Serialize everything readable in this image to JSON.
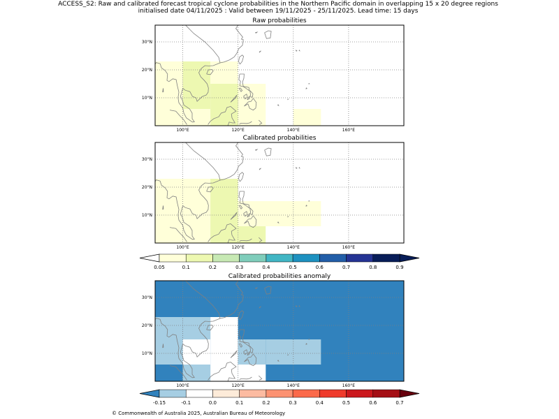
{
  "title": {
    "line1": "ACCESS_S2: Raw and calibrated forecast tropical cyclone probabilities in the Northern Pacific domain in overlapping 15 x 20 degree regions",
    "line2": "initialised date 04/11/2025 :  Valid between 19/11/2025 - 25/11/2025. Lead time: 15 days"
  },
  "footer": "© Commonwealth of Australia 2025, Australian Bureau of Meteorology",
  "colors": {
    "coast": "#808080",
    "grid": "#808080",
    "prob_bins": [
      "#ffffd9",
      "#edf8b1",
      "#c7e9b4",
      "#7fcdbb",
      "#41b6c4",
      "#1d91c0",
      "#225ea8",
      "#253494",
      "#081d58"
    ],
    "prob_under": "#ffffff",
    "prob_over": "#081d58",
    "anom_bins": [
      "#a6cee3",
      "#ffffff",
      "#fdebd9",
      "#fcbba1",
      "#fc9272",
      "#fb6a4a",
      "#ef3b2c",
      "#cb181d",
      "#a50f15"
    ],
    "anom_under": "#3182bd",
    "anom_over": "#67000d"
  },
  "chart_data": [
    {
      "type": "heatmap",
      "title": "Raw probabilities",
      "xlim": [
        90,
        180
      ],
      "ylim": [
        0,
        36
      ],
      "xticks": [
        100,
        120,
        140,
        160
      ],
      "xtick_labels": [
        "100°E",
        "120°E",
        "140°E",
        "160°E"
      ],
      "yticks": [
        10,
        20,
        30
      ],
      "ytick_labels": [
        "10°N",
        "20°N",
        "30°N"
      ],
      "cells": [
        {
          "lon": [
            90,
            100
          ],
          "lat": [
            0,
            23
          ],
          "value": 0.07
        },
        {
          "lon": [
            100,
            110
          ],
          "lat": [
            0,
            6
          ],
          "value": 0.07
        },
        {
          "lon": [
            100,
            110
          ],
          "lat": [
            6,
            23
          ],
          "value": 0.12
        },
        {
          "lon": [
            110,
            120
          ],
          "lat": [
            0,
            15
          ],
          "value": 0.12
        },
        {
          "lon": [
            110,
            120
          ],
          "lat": [
            15,
            23
          ],
          "value": 0.07
        },
        {
          "lon": [
            120,
            130
          ],
          "lat": [
            0,
            15
          ],
          "value": 0.07
        },
        {
          "lon": [
            140,
            150
          ],
          "lat": [
            0,
            6
          ],
          "value": 0.07
        }
      ]
    },
    {
      "type": "heatmap",
      "title": "Calibrated probabilities",
      "xlim": [
        90,
        180
      ],
      "ylim": [
        0,
        36
      ],
      "xticks": [
        100,
        120,
        140,
        160
      ],
      "xtick_labels": [
        "100°E",
        "120°E",
        "140°E",
        "160°E"
      ],
      "yticks": [
        10,
        20,
        30
      ],
      "ytick_labels": [
        "10°N",
        "20°N",
        "30°N"
      ],
      "cells": [
        {
          "lon": [
            90,
            100
          ],
          "lat": [
            0,
            23
          ],
          "value": 0.07
        },
        {
          "lon": [
            100,
            110
          ],
          "lat": [
            0,
            23
          ],
          "value": 0.07
        },
        {
          "lon": [
            110,
            120
          ],
          "lat": [
            0,
            23
          ],
          "value": 0.12
        },
        {
          "lon": [
            120,
            130
          ],
          "lat": [
            0,
            6
          ],
          "value": 0.12
        },
        {
          "lon": [
            120,
            150
          ],
          "lat": [
            6,
            15
          ],
          "value": 0.07
        }
      ]
    },
    {
      "type": "colorbar",
      "name": "probability",
      "boundaries": [
        0.05,
        0.1,
        0.2,
        0.3,
        0.4,
        0.5,
        0.6,
        0.7,
        0.8,
        0.9
      ],
      "labels": [
        "0.05",
        "0.1",
        "0.2",
        "0.3",
        "0.4",
        "0.5",
        "0.6",
        "0.7",
        "0.8",
        "0.9"
      ],
      "extend": "both"
    },
    {
      "type": "heatmap",
      "title": "Calibrated probabilities anomaly",
      "xlim": [
        90,
        180
      ],
      "ylim": [
        0,
        36
      ],
      "xticks": [
        100,
        120,
        140,
        160
      ],
      "xtick_labels": [
        "100°E",
        "120°E",
        "140°E",
        "160°E"
      ],
      "yticks": [
        10,
        20,
        30
      ],
      "ytick_labels": [
        "10°N",
        "20°N",
        "30°N"
      ],
      "background_value": -0.17,
      "cells": [
        {
          "lon": [
            90,
            100
          ],
          "lat": [
            6,
            23
          ],
          "value": -0.12
        },
        {
          "lon": [
            100,
            110
          ],
          "lat": [
            15,
            23
          ],
          "value": -0.12
        },
        {
          "lon": [
            100,
            110
          ],
          "lat": [
            0,
            15
          ],
          "value": -0.05
        },
        {
          "lon": [
            110,
            120
          ],
          "lat": [
            21,
            23
          ],
          "value": -0.05
        },
        {
          "lon": [
            110,
            120
          ],
          "lat": [
            15,
            21
          ],
          "value": -0.05
        },
        {
          "lon": [
            110,
            120
          ],
          "lat": [
            6,
            15
          ],
          "value": -0.05
        },
        {
          "lon": [
            90,
            100
          ],
          "lat": [
            0,
            6
          ],
          "value": -0.17
        },
        {
          "lon": [
            100,
            110
          ],
          "lat": [
            0,
            6
          ],
          "value": -0.12
        },
        {
          "lon": [
            110,
            120
          ],
          "lat": [
            0,
            6
          ],
          "value": -0.05
        },
        {
          "lon": [
            120,
            130
          ],
          "lat": [
            0,
            15
          ],
          "value": -0.12
        },
        {
          "lon": [
            130,
            150
          ],
          "lat": [
            6,
            15
          ],
          "value": -0.12
        },
        {
          "lon": [
            120,
            130
          ],
          "lat": [
            0,
            6
          ],
          "value": -0.05
        }
      ]
    },
    {
      "type": "colorbar",
      "name": "anomaly",
      "boundaries": [
        -0.15,
        -0.1,
        0.0,
        0.1,
        0.2,
        0.3,
        0.4,
        0.5,
        0.6,
        0.7
      ],
      "labels": [
        "-0.15",
        "-0.1",
        "0.0",
        "0.1",
        "0.2",
        "0.3",
        "0.4",
        "0.5",
        "0.6",
        "0.7"
      ],
      "extend": "both"
    }
  ]
}
